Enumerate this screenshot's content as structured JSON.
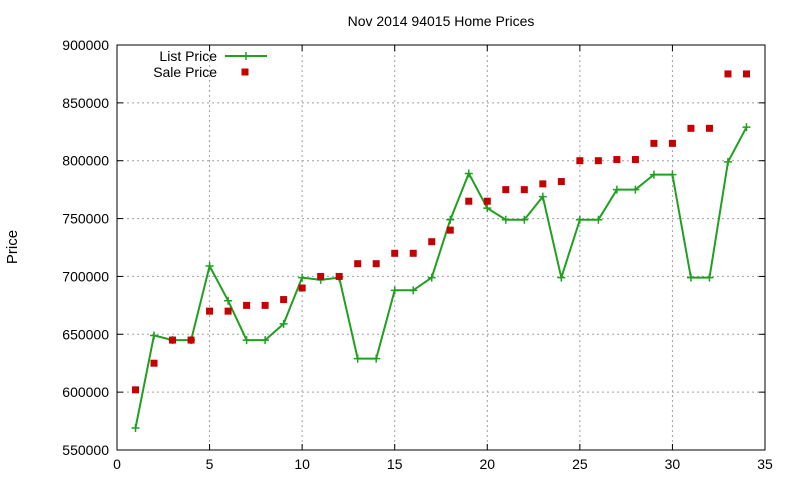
{
  "chart_data": {
    "type": "line",
    "title": "Nov 2014 94015 Home Prices",
    "xlabel": "",
    "ylabel": "Price",
    "xlim": [
      0,
      35
    ],
    "ylim": [
      550000,
      900000
    ],
    "x_ticks": [
      0,
      5,
      10,
      15,
      20,
      25,
      30,
      35
    ],
    "y_ticks": [
      550000,
      600000,
      650000,
      700000,
      750000,
      800000,
      850000,
      900000
    ],
    "grid": true,
    "legend_position": "top-left",
    "series": [
      {
        "name": "List Price",
        "style": "line-plus",
        "color": "#1fa01f",
        "x": [
          1,
          2,
          3,
          4,
          5,
          6,
          7,
          8,
          9,
          10,
          11,
          12,
          13,
          14,
          15,
          16,
          17,
          18,
          19,
          20,
          21,
          22,
          23,
          24,
          25,
          26,
          27,
          28,
          29,
          30,
          31,
          32,
          33,
          34
        ],
        "values": [
          569000,
          649000,
          645000,
          645000,
          709000,
          679000,
          645000,
          645000,
          659000,
          699000,
          697000,
          699000,
          629000,
          629000,
          688000,
          688000,
          699000,
          749000,
          789000,
          759000,
          749000,
          749000,
          769000,
          699000,
          749000,
          749000,
          775000,
          775000,
          788000,
          788000,
          699000,
          699000,
          799000,
          829000
        ]
      },
      {
        "name": "Sale Price",
        "style": "square-points",
        "color": "#c40000",
        "x": [
          1,
          2,
          3,
          4,
          5,
          6,
          7,
          8,
          9,
          10,
          11,
          12,
          13,
          14,
          15,
          16,
          17,
          18,
          19,
          20,
          21,
          22,
          23,
          24,
          25,
          26,
          27,
          28,
          29,
          30,
          31,
          32,
          33,
          34
        ],
        "values": [
          602000,
          625000,
          645000,
          645000,
          670000,
          670000,
          675000,
          675000,
          680000,
          690000,
          700000,
          700000,
          711000,
          711000,
          720000,
          720000,
          730000,
          740000,
          765000,
          765000,
          775000,
          775000,
          780000,
          782000,
          800000,
          800000,
          801000,
          801000,
          815000,
          815000,
          828000,
          828000,
          875000,
          875000
        ]
      }
    ]
  }
}
